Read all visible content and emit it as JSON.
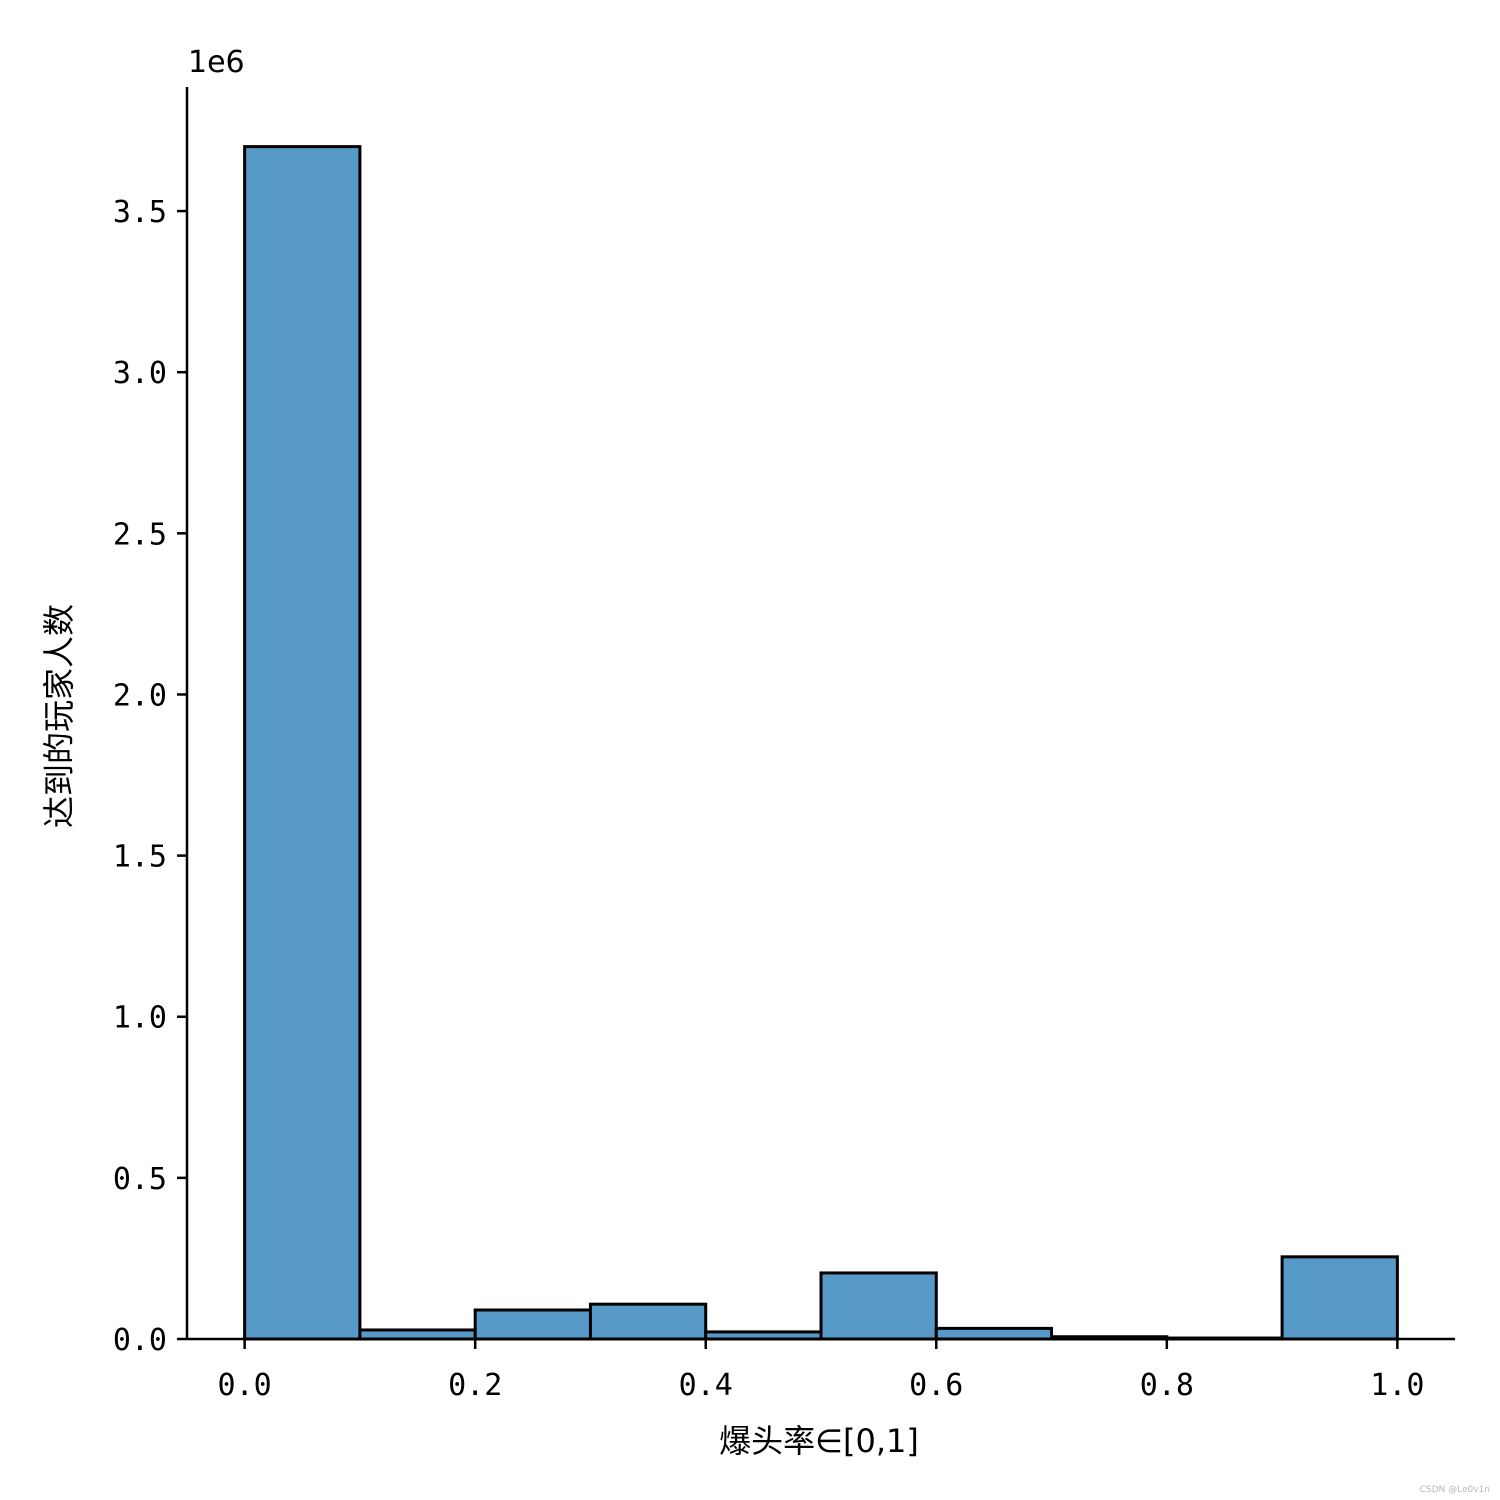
{
  "chart_data": {
    "type": "bar",
    "bin_edges": [
      0.0,
      0.1,
      0.2,
      0.3,
      0.4,
      0.5,
      0.6,
      0.7,
      0.8,
      0.9,
      1.0
    ],
    "values": [
      3700000,
      28000,
      90000,
      108000,
      22000,
      205000,
      33000,
      7000,
      3000,
      255000
    ],
    "xlabel": "爆头率∈[0,1]",
    "ylabel": "达到的玩家人数",
    "xlim": [
      -0.05,
      1.05
    ],
    "ylim": [
      0,
      3885000
    ],
    "x_ticks": [
      0.0,
      0.2,
      0.4,
      0.6,
      0.8,
      1.0
    ],
    "x_tick_labels": [
      "0.0",
      "0.2",
      "0.4",
      "0.6",
      "0.8",
      "1.0"
    ],
    "y_ticks": [
      0,
      500000,
      1000000,
      1500000,
      2000000,
      2500000,
      3000000,
      3500000
    ],
    "y_tick_labels": [
      "0.0",
      "0.5",
      "1.0",
      "1.5",
      "2.0",
      "2.5",
      "3.0",
      "3.5"
    ],
    "y_offset_label": "1e6",
    "grid": false,
    "bar_color": "#5799c7",
    "edge_color": "#000000"
  },
  "watermark": "CSDN @Le0v1n"
}
